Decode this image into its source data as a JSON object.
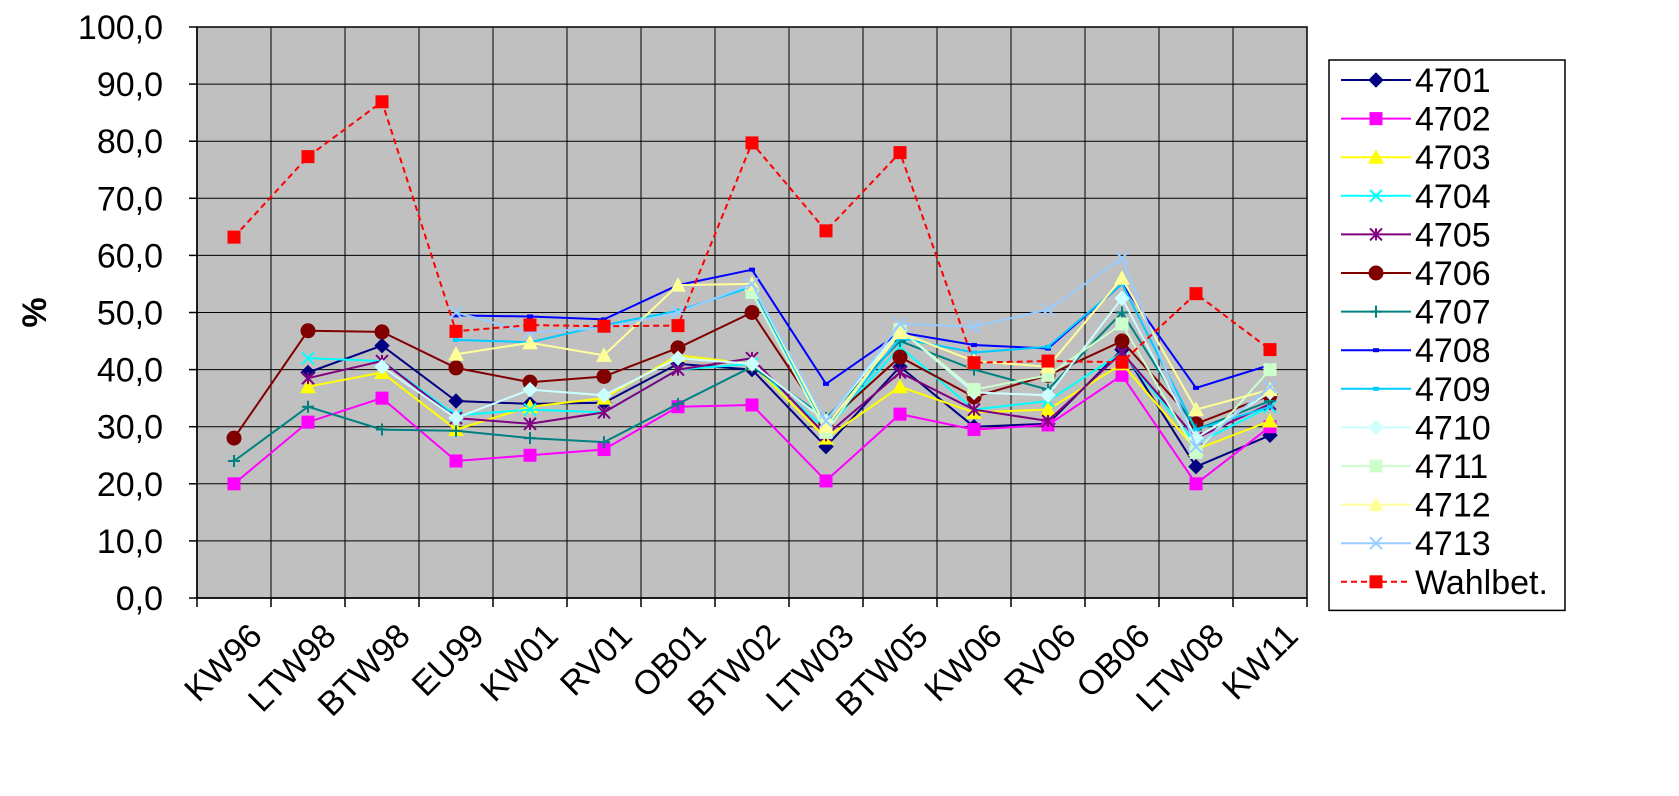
{
  "chart_data": {
    "type": "line",
    "title": "",
    "xlabel": "",
    "ylabel": "%",
    "ylim": [
      0,
      100
    ],
    "y_ticks": [
      "0,0",
      "10,0",
      "20,0",
      "30,0",
      "40,0",
      "50,0",
      "60,0",
      "70,0",
      "80,0",
      "90,0",
      "100,0"
    ],
    "categories": [
      "KW96",
      "LTW98",
      "BTW98",
      "EU99",
      "KW01",
      "RV01",
      "OB01",
      "BTW02",
      "LTW03",
      "BTW05",
      "KW06",
      "RV06",
      "OB06",
      "LTW08",
      "KW11"
    ],
    "plot_background": "#c0c0c0",
    "grid": true,
    "legend_position": "right",
    "series": [
      {
        "name": "4701",
        "color": "#000080",
        "marker": "diamond",
        "dash": "solid",
        "values": [
          null,
          39.5,
          44.2,
          34.5,
          34.0,
          34.2,
          41.0,
          40.0,
          26.5,
          40.5,
          30.0,
          30.5,
          43.5,
          23.0,
          28.5
        ]
      },
      {
        "name": "4702",
        "color": "#ff00ff",
        "marker": "square",
        "dash": "solid",
        "values": [
          20.0,
          30.8,
          35.0,
          24.0,
          25.0,
          26.0,
          33.5,
          33.8,
          20.5,
          32.2,
          29.5,
          30.3,
          39.0,
          20.0,
          30.0
        ]
      },
      {
        "name": "4703",
        "color": "#ffff00",
        "marker": "triangle",
        "dash": "solid",
        "values": [
          null,
          37.0,
          39.5,
          29.5,
          33.5,
          35.0,
          42.5,
          41.0,
          28.0,
          37.0,
          32.5,
          33.0,
          41.0,
          26.0,
          31.0
        ]
      },
      {
        "name": "4704",
        "color": "#00ffff",
        "marker": "x",
        "dash": "solid",
        "values": [
          null,
          42.0,
          41.5,
          32.0,
          33.0,
          32.5,
          40.0,
          41.0,
          29.5,
          44.0,
          33.0,
          34.5,
          43.0,
          27.0,
          33.5
        ]
      },
      {
        "name": "4705",
        "color": "#800080",
        "marker": "star",
        "dash": "solid",
        "values": [
          null,
          38.5,
          41.5,
          31.5,
          30.5,
          32.5,
          40.0,
          42.0,
          28.5,
          39.5,
          33.0,
          31.0,
          43.0,
          28.0,
          34.0
        ]
      },
      {
        "name": "4706",
        "color": "#800000",
        "marker": "circle",
        "dash": "solid",
        "values": [
          28.0,
          46.8,
          46.6,
          40.3,
          37.8,
          38.8,
          43.8,
          50.0,
          30.5,
          42.2,
          35.2,
          39.0,
          45.0,
          30.5,
          35.5
        ]
      },
      {
        "name": "4707",
        "color": "#008080",
        "marker": "plus",
        "dash": "solid",
        "values": [
          24.0,
          33.5,
          29.5,
          29.3,
          28.0,
          27.3,
          34.0,
          40.5,
          31.5,
          45.0,
          40.0,
          36.5,
          50.0,
          29.5,
          34.5
        ]
      },
      {
        "name": "4708",
        "color": "#0000ff",
        "marker": "dash",
        "dash": "solid",
        "values": [
          null,
          null,
          null,
          49.5,
          49.3,
          48.8,
          54.8,
          57.5,
          37.5,
          46.5,
          44.3,
          43.7,
          55.0,
          36.8,
          40.8
        ]
      },
      {
        "name": "4709",
        "color": "#00ccff",
        "marker": "dash",
        "dash": "solid",
        "values": [
          null,
          null,
          null,
          45.2,
          44.8,
          47.8,
          50.3,
          54.5,
          29.5,
          45.5,
          43.0,
          44.0,
          55.0,
          29.5,
          33.5
        ]
      },
      {
        "name": "4710",
        "color": "#ccffff",
        "marker": "diamond",
        "dash": "solid",
        "values": [
          null,
          null,
          40.5,
          31.5,
          36.5,
          35.5,
          42.0,
          41.0,
          31.0,
          47.0,
          36.0,
          35.5,
          52.5,
          28.0,
          36.0
        ]
      },
      {
        "name": "4711",
        "color": "#ccffcc",
        "marker": "square",
        "dash": "solid",
        "values": [
          null,
          null,
          null,
          null,
          null,
          null,
          null,
          53.5,
          29.0,
          47.0,
          36.5,
          39.0,
          48.0,
          25.5,
          40.0
        ]
      },
      {
        "name": "4712",
        "color": "#ffff99",
        "marker": "triangle",
        "dash": "solid",
        "values": [
          null,
          null,
          null,
          42.7,
          44.7,
          42.5,
          54.8,
          55.0,
          30.0,
          46.5,
          41.5,
          40.5,
          56.0,
          33.0,
          36.5
        ]
      },
      {
        "name": "4713",
        "color": "#99ccff",
        "marker": "x",
        "dash": "solid",
        "values": [
          null,
          null,
          null,
          50.0,
          46.5,
          47.3,
          50.0,
          55.0,
          31.0,
          48.0,
          47.5,
          50.5,
          59.5,
          26.5,
          37.0
        ]
      },
      {
        "name": "Wahlbet.",
        "color": "#ff0000",
        "marker": "square",
        "dash": "dashed",
        "values": [
          63.2,
          77.3,
          86.9,
          46.7,
          47.8,
          47.6,
          47.7,
          79.7,
          64.3,
          78.0,
          41.2,
          41.5,
          41.3,
          53.3,
          43.5
        ]
      }
    ]
  }
}
